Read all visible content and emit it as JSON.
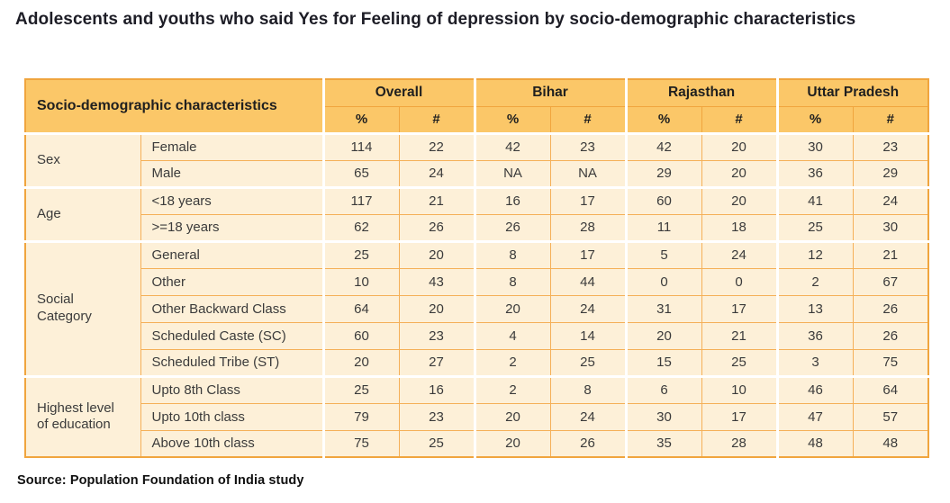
{
  "colors": {
    "header_bg": "#FBC768",
    "cell_bg": "#FDF0D8",
    "outer_border": "#F0A53E",
    "grid_line": "#F5B058",
    "group_gap": "#FFFFFF",
    "title_text": "#1D1D26",
    "table_text": "#3B3B3B"
  },
  "chart_data": {
    "type": "table",
    "title": "Adolescents and youths who said Yes for Feeling of depression by socio-demographic characteristics",
    "corner_header": "Socio-demographic characteristics",
    "column_groups": [
      "Overall",
      "Bihar",
      "Rajasthan",
      "Uttar Pradesh"
    ],
    "sub_columns": [
      "%",
      "#"
    ],
    "row_groups": [
      {
        "label": "Sex",
        "rows": [
          {
            "label": "Female",
            "values": [
              114,
              22,
              42,
              23,
              42,
              20,
              30,
              23
            ]
          },
          {
            "label": "Male",
            "values": [
              65,
              24,
              "NA",
              "NA",
              29,
              20,
              36,
              29
            ]
          }
        ]
      },
      {
        "label": "Age",
        "rows": [
          {
            "label": "<18 years",
            "values": [
              117,
              21,
              16,
              17,
              60,
              20,
              41,
              24
            ]
          },
          {
            "label": ">=18 years",
            "values": [
              62,
              26,
              26,
              28,
              11,
              18,
              25,
              30
            ]
          }
        ]
      },
      {
        "label": "Social Category",
        "rows": [
          {
            "label": "General",
            "values": [
              25,
              20,
              8,
              17,
              5,
              24,
              12,
              21
            ]
          },
          {
            "label": "Other",
            "values": [
              10,
              43,
              8,
              44,
              0,
              0,
              2,
              67
            ]
          },
          {
            "label": "Other Backward Class",
            "values": [
              64,
              20,
              20,
              24,
              31,
              17,
              13,
              26
            ]
          },
          {
            "label": "Scheduled Caste (SC)",
            "values": [
              60,
              23,
              4,
              14,
              20,
              21,
              36,
              26
            ]
          },
          {
            "label": "Scheduled Tribe (ST)",
            "values": [
              20,
              27,
              2,
              25,
              15,
              25,
              3,
              75
            ]
          }
        ]
      },
      {
        "label": "Highest level of education",
        "rows": [
          {
            "label": "Upto 8th Class",
            "values": [
              25,
              16,
              2,
              8,
              6,
              10,
              46,
              64
            ]
          },
          {
            "label": "Upto 10th class",
            "values": [
              79,
              23,
              20,
              24,
              30,
              17,
              47,
              57
            ]
          },
          {
            "label": "Above 10th class",
            "values": [
              75,
              25,
              20,
              26,
              35,
              28,
              48,
              48
            ]
          }
        ]
      }
    ],
    "source": "Source: Population Foundation of India study"
  }
}
